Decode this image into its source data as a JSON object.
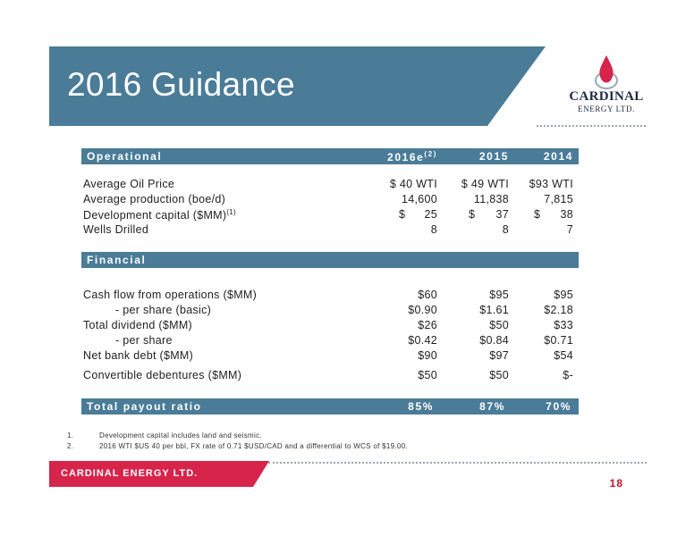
{
  "slide": {
    "title": "2016 Guidance",
    "page_number": "18",
    "footer_brand": "CARDINAL ENERGY LTD.",
    "colors": {
      "title_band": "#4a7c98",
      "footer_band": "#d6244b",
      "page_number": "#c8102e"
    }
  },
  "logo": {
    "name": "CARDINAL",
    "sub": "ENERGY LTD.",
    "icon": "flame-drop-icon"
  },
  "table": {
    "operational_header": {
      "label": "Operational",
      "col1": "2016e",
      "col1_sup": "(2)",
      "col2": "2015",
      "col3": "2014"
    },
    "operational_rows": [
      {
        "label": "Average Oil Price",
        "sup": "",
        "v1": "$ 40 WTI",
        "v2": "$ 49 WTI",
        "v3": "$93 WTI"
      },
      {
        "label": "Average production (boe/d)",
        "sup": "",
        "v1": "14,600",
        "v2": "11,838",
        "v3": "7,815"
      },
      {
        "label": "Development capital ($MM)",
        "sup": "(1)",
        "v1a": "$",
        "v1b": "25",
        "v2a": "$",
        "v2b": "37",
        "v3a": "$",
        "v3b": "38"
      },
      {
        "label": "Wells Drilled",
        "sup": "",
        "v1": "8",
        "v2": "8",
        "v3": "7"
      }
    ],
    "financial_header": {
      "label": "Financial"
    },
    "financial_rows": [
      {
        "label": "Cash flow from operations ($MM)",
        "v1": "$60",
        "v2": "$95",
        "v3": "$95"
      },
      {
        "label": "- per share (basic)",
        "v1": "$0.90",
        "v2": "$1.61",
        "v3": "$2.18"
      },
      {
        "label": "Total dividend ($MM)",
        "v1": "$26",
        "v2": "$50",
        "v3": "$33"
      },
      {
        "label": "- per share",
        "v1": "$0.42",
        "v2": "$0.84",
        "v3": "$0.71"
      },
      {
        "label": "Net bank debt ($MM)",
        "v1": "$90",
        "v2": "$97",
        "v3": "$54"
      },
      {
        "label": "Convertible debentures ($MM)",
        "v1": "$50",
        "v2": "$50",
        "v3": "$-"
      }
    ],
    "payout": {
      "label": "Total payout ratio",
      "v1": "85%",
      "v2": "87%",
      "v3": "70%"
    }
  },
  "footnotes": [
    {
      "num": "1.",
      "text": "Development capital includes land and seismic."
    },
    {
      "num": "2.",
      "text": "2016 WTI $US 40 per bbl, FX rate of 0.71 $USD/CAD and a differential to WCS of $19.00."
    }
  ]
}
